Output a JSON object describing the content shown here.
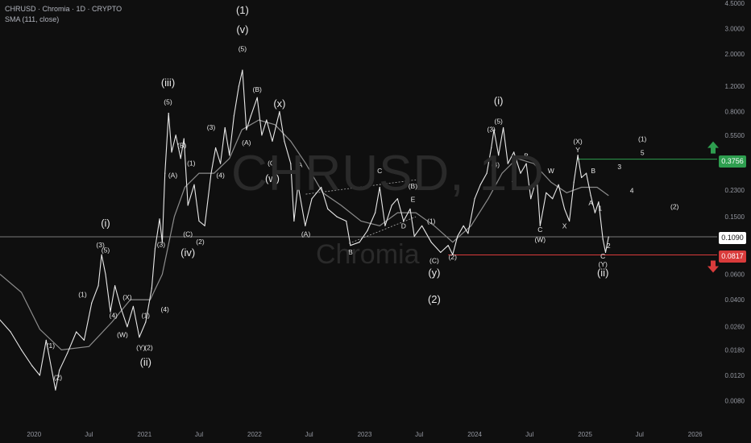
{
  "header": {
    "title": "CHRUSD · Chromia · 1D · CRYPTO",
    "indicator": "SMA (111, close)"
  },
  "watermark": {
    "symbol": "CHRUSD, 1D",
    "name": "Chromia"
  },
  "price_tags": {
    "target": "0.3756",
    "current": "0.1090",
    "stop": "0.0817"
  },
  "colors": {
    "background": "#0f0f0f",
    "price": "#e8e8e8",
    "sma": "#8c8c8c",
    "target": "#2e9e4f",
    "stop": "#d93b3b",
    "current_tag_bg": "#ffffff",
    "label": "#e6e6e6"
  },
  "chart_data": {
    "type": "line",
    "title": "CHRUSD · Chromia · 1D · CRYPTO",
    "scale": "log",
    "ylim": [
      0.007,
      4.5
    ],
    "xlim": [
      "2019-09-10",
      "2026-03-15"
    ],
    "grid": false,
    "y_ticks": [
      "4.5000",
      "3.0000",
      "2.0000",
      "1.2000",
      "0.8000",
      "0.5500",
      "0.3756",
      "0.2300",
      "0.1500",
      "0.1090",
      "0.0817",
      "0.0600",
      "0.0400",
      "0.0260",
      "0.0180",
      "0.0120",
      "0.0080"
    ],
    "x_ticks": [
      {
        "date": "2020-01-01",
        "label": "2020"
      },
      {
        "date": "2020-07-01",
        "label": "Jul"
      },
      {
        "date": "2021-01-01",
        "label": "2021"
      },
      {
        "date": "2021-07-01",
        "label": "Jul"
      },
      {
        "date": "2022-01-01",
        "label": "2022"
      },
      {
        "date": "2022-07-01",
        "label": "Jul"
      },
      {
        "date": "2023-01-01",
        "label": "2023"
      },
      {
        "date": "2023-07-01",
        "label": "Jul"
      },
      {
        "date": "2024-01-01",
        "label": "2024"
      },
      {
        "date": "2024-07-01",
        "label": "Jul"
      },
      {
        "date": "2025-01-01",
        "label": "2025"
      },
      {
        "date": "2025-07-01",
        "label": "Jul"
      },
      {
        "date": "2026-01-01",
        "label": "2026"
      }
    ],
    "series": [
      {
        "name": "CHRUSD",
        "kind": "price",
        "points": [
          [
            "2019-09-10",
            0.029
          ],
          [
            "2019-10-15",
            0.024
          ],
          [
            "2019-11-20",
            0.018
          ],
          [
            "2019-12-25",
            0.014
          ],
          [
            "2020-01-20",
            0.012
          ],
          [
            "2020-02-10",
            0.021
          ],
          [
            "2020-03-12",
            0.0095
          ],
          [
            "2020-03-25",
            0.013
          ],
          [
            "2020-04-20",
            0.017
          ],
          [
            "2020-05-20",
            0.024
          ],
          [
            "2020-06-15",
            0.021
          ],
          [
            "2020-07-10",
            0.038
          ],
          [
            "2020-08-01",
            0.05
          ],
          [
            "2020-08-12",
            0.082
          ],
          [
            "2020-08-25",
            0.06
          ],
          [
            "2020-09-10",
            0.033
          ],
          [
            "2020-09-25",
            0.05
          ],
          [
            "2020-10-15",
            0.035
          ],
          [
            "2020-11-05",
            0.026
          ],
          [
            "2020-11-25",
            0.036
          ],
          [
            "2020-12-15",
            0.022
          ],
          [
            "2021-01-05",
            0.028
          ],
          [
            "2021-01-25",
            0.048
          ],
          [
            "2021-02-05",
            0.09
          ],
          [
            "2021-02-20",
            0.145
          ],
          [
            "2021-03-01",
            0.1
          ],
          [
            "2021-03-10",
            0.3
          ],
          [
            "2021-03-22",
            0.78
          ],
          [
            "2021-04-01",
            0.42
          ],
          [
            "2021-04-15",
            0.55
          ],
          [
            "2021-05-01",
            0.38
          ],
          [
            "2021-05-12",
            0.52
          ],
          [
            "2021-05-25",
            0.18
          ],
          [
            "2021-06-15",
            0.25
          ],
          [
            "2021-07-01",
            0.14
          ],
          [
            "2021-07-20",
            0.13
          ],
          [
            "2021-08-10",
            0.3
          ],
          [
            "2021-08-25",
            0.45
          ],
          [
            "2021-09-10",
            0.35
          ],
          [
            "2021-09-25",
            0.62
          ],
          [
            "2021-10-10",
            0.4
          ],
          [
            "2021-10-25",
            0.75
          ],
          [
            "2021-11-10",
            1.2
          ],
          [
            "2021-11-22",
            1.55
          ],
          [
            "2021-12-05",
            0.6
          ],
          [
            "2021-12-20",
            0.75
          ],
          [
            "2022-01-10",
            1.0
          ],
          [
            "2022-01-25",
            0.55
          ],
          [
            "2022-02-10",
            0.7
          ],
          [
            "2022-03-01",
            0.5
          ],
          [
            "2022-03-25",
            0.8
          ],
          [
            "2022-04-10",
            0.5
          ],
          [
            "2022-05-01",
            0.35
          ],
          [
            "2022-05-12",
            0.14
          ],
          [
            "2022-05-25",
            0.25
          ],
          [
            "2022-06-18",
            0.13
          ],
          [
            "2022-07-10",
            0.2
          ],
          [
            "2022-08-10",
            0.24
          ],
          [
            "2022-09-01",
            0.17
          ],
          [
            "2022-10-01",
            0.15
          ],
          [
            "2022-11-01",
            0.14
          ],
          [
            "2022-11-15",
            0.095
          ],
          [
            "2022-12-15",
            0.1
          ],
          [
            "2023-01-10",
            0.12
          ],
          [
            "2023-02-05",
            0.16
          ],
          [
            "2023-02-20",
            0.24
          ],
          [
            "2023-03-10",
            0.13
          ],
          [
            "2023-04-01",
            0.18
          ],
          [
            "2023-04-20",
            0.2
          ],
          [
            "2023-05-10",
            0.14
          ],
          [
            "2023-06-01",
            0.17
          ],
          [
            "2023-06-15",
            0.11
          ],
          [
            "2023-07-10",
            0.13
          ],
          [
            "2023-08-10",
            0.1
          ],
          [
            "2023-09-10",
            0.085
          ],
          [
            "2023-10-05",
            0.095
          ],
          [
            "2023-10-20",
            0.082
          ],
          [
            "2023-11-05",
            0.11
          ],
          [
            "2023-11-25",
            0.13
          ],
          [
            "2023-12-10",
            0.115
          ],
          [
            "2024-01-01",
            0.2
          ],
          [
            "2024-01-20",
            0.25
          ],
          [
            "2024-02-10",
            0.3
          ],
          [
            "2024-02-25",
            0.45
          ],
          [
            "2024-03-05",
            0.6
          ],
          [
            "2024-03-20",
            0.4
          ],
          [
            "2024-04-05",
            0.62
          ],
          [
            "2024-04-20",
            0.35
          ],
          [
            "2024-05-10",
            0.42
          ],
          [
            "2024-06-01",
            0.3
          ],
          [
            "2024-06-20",
            0.35
          ],
          [
            "2024-07-05",
            0.2
          ],
          [
            "2024-07-25",
            0.28
          ],
          [
            "2024-08-05",
            0.13
          ],
          [
            "2024-08-25",
            0.22
          ],
          [
            "2024-09-15",
            0.2
          ],
          [
            "2024-10-05",
            0.25
          ],
          [
            "2024-10-25",
            0.17
          ],
          [
            "2024-11-10",
            0.14
          ],
          [
            "2024-11-25",
            0.26
          ],
          [
            "2024-12-08",
            0.4
          ],
          [
            "2024-12-20",
            0.28
          ],
          [
            "2025-01-05",
            0.3
          ],
          [
            "2025-01-20",
            0.21
          ],
          [
            "2025-02-03",
            0.16
          ],
          [
            "2025-02-15",
            0.19
          ],
          [
            "2025-03-01",
            0.105
          ],
          [
            "2025-03-10",
            0.085
          ],
          [
            "2025-03-20",
            0.109
          ]
        ]
      },
      {
        "name": "SMA (111, close)",
        "kind": "sma",
        "points": [
          [
            "2019-09-10",
            0.06
          ],
          [
            "2019-11-20",
            0.045
          ],
          [
            "2020-01-20",
            0.025
          ],
          [
            "2020-04-01",
            0.018
          ],
          [
            "2020-07-01",
            0.019
          ],
          [
            "2020-09-15",
            0.028
          ],
          [
            "2020-11-15",
            0.04
          ],
          [
            "2021-01-20",
            0.04
          ],
          [
            "2021-03-01",
            0.06
          ],
          [
            "2021-04-10",
            0.15
          ],
          [
            "2021-05-15",
            0.24
          ],
          [
            "2021-07-01",
            0.3
          ],
          [
            "2021-08-20",
            0.3
          ],
          [
            "2021-10-10",
            0.38
          ],
          [
            "2021-11-20",
            0.6
          ],
          [
            "2022-01-15",
            0.7
          ],
          [
            "2022-03-10",
            0.65
          ],
          [
            "2022-05-01",
            0.5
          ],
          [
            "2022-06-20",
            0.35
          ],
          [
            "2022-08-15",
            0.22
          ],
          [
            "2022-10-15",
            0.18
          ],
          [
            "2022-12-20",
            0.14
          ],
          [
            "2023-02-20",
            0.13
          ],
          [
            "2023-04-20",
            0.16
          ],
          [
            "2023-06-20",
            0.16
          ],
          [
            "2023-08-20",
            0.13
          ],
          [
            "2023-10-20",
            0.1
          ],
          [
            "2023-12-20",
            0.13
          ],
          [
            "2024-02-15",
            0.2
          ],
          [
            "2024-04-01",
            0.3
          ],
          [
            "2024-05-20",
            0.38
          ],
          [
            "2024-07-15",
            0.35
          ],
          [
            "2024-09-10",
            0.26
          ],
          [
            "2024-11-01",
            0.22
          ],
          [
            "2024-12-20",
            0.24
          ],
          [
            "2025-02-10",
            0.24
          ],
          [
            "2025-03-20",
            0.21
          ]
        ]
      }
    ],
    "levels": [
      {
        "value": 0.109,
        "label": "0.1090",
        "from": "2019-09-10"
      },
      {
        "value": 0.3756,
        "label": "0.3756",
        "from": "2024-12-05"
      },
      {
        "value": 0.0817,
        "label": "0.0817",
        "from": "2023-10-05"
      }
    ],
    "trendlines": [
      {
        "from": [
          "2022-06-20",
          0.215
        ],
        "to": [
          "2023-06-20",
          0.27
        ]
      },
      {
        "from": [
          "2022-11-10",
          0.098
        ],
        "to": [
          "2023-06-20",
          0.15
        ]
      }
    ],
    "annotations": [
      {
        "text": "(1)",
        "date": "2020-02-25",
        "price": 0.0185
      },
      {
        "text": "(2)",
        "date": "2020-03-20",
        "price": 0.0112
      },
      {
        "text": "(1)",
        "date": "2020-06-10",
        "price": 0.042
      },
      {
        "text": "(3)",
        "date": "2020-08-08",
        "price": 0.092
      },
      {
        "text": "(5)",
        "date": "2020-08-25",
        "price": 0.085
      },
      {
        "text": "(i)",
        "date": "2020-08-25",
        "price": 0.128,
        "big": true
      },
      {
        "text": "(4)",
        "date": "2020-09-20",
        "price": 0.03
      },
      {
        "text": "(X)",
        "date": "2020-11-05",
        "price": 0.04
      },
      {
        "text": "(W)",
        "date": "2020-10-20",
        "price": 0.022
      },
      {
        "text": "(Y)",
        "date": "2020-12-20",
        "price": 0.018
      },
      {
        "text": "(1)",
        "date": "2021-01-05",
        "price": 0.03
      },
      {
        "text": "(2)",
        "date": "2021-01-15",
        "price": 0.018
      },
      {
        "text": "(ii)",
        "date": "2021-01-05",
        "price": 0.014,
        "big": true
      },
      {
        "text": "(3)",
        "date": "2021-02-25",
        "price": 0.093
      },
      {
        "text": "(4)",
        "date": "2021-03-10",
        "price": 0.033
      },
      {
        "text": "(5)",
        "date": "2021-03-20",
        "price": 0.9
      },
      {
        "text": "(iii)",
        "date": "2021-03-20",
        "price": 1.2,
        "big": true
      },
      {
        "text": "(A)",
        "date": "2021-04-05",
        "price": 0.28
      },
      {
        "text": "(B)",
        "date": "2021-05-05",
        "price": 0.45
      },
      {
        "text": "(C)",
        "date": "2021-05-25",
        "price": 0.11
      },
      {
        "text": "(iv)",
        "date": "2021-05-25",
        "price": 0.08,
        "big": true
      },
      {
        "text": "(1)",
        "date": "2021-06-05",
        "price": 0.34
      },
      {
        "text": "(2)",
        "date": "2021-07-05",
        "price": 0.097
      },
      {
        "text": "(3)",
        "date": "2021-08-10",
        "price": 0.6
      },
      {
        "text": "(4)",
        "date": "2021-09-10",
        "price": 0.28
      },
      {
        "text": "(5)",
        "date": "2021-11-22",
        "price": 2.1
      },
      {
        "text": "(v)",
        "date": "2021-11-22",
        "price": 2.8,
        "big": true
      },
      {
        "text": "(1)",
        "date": "2021-11-22",
        "price": 3.8,
        "big": true
      },
      {
        "text": "(A)",
        "date": "2021-12-05",
        "price": 0.47
      },
      {
        "text": "(B)",
        "date": "2022-01-10",
        "price": 1.1
      },
      {
        "text": "(C)",
        "date": "2022-03-01",
        "price": 0.34
      },
      {
        "text": "(w)",
        "date": "2022-03-01",
        "price": 0.26,
        "big": true
      },
      {
        "text": "(x)",
        "date": "2022-03-25",
        "price": 0.86,
        "big": true
      },
      {
        "text": "A",
        "date": "2022-06-01",
        "price": 0.33
      },
      {
        "text": "(A)",
        "date": "2022-06-20",
        "price": 0.11
      },
      {
        "text": "B",
        "date": "2022-11-15",
        "price": 0.082
      },
      {
        "text": "C",
        "date": "2023-02-20",
        "price": 0.3
      },
      {
        "text": "D",
        "date": "2023-05-10",
        "price": 0.125
      },
      {
        "text": "(B)",
        "date": "2023-06-10",
        "price": 0.235
      },
      {
        "text": "E",
        "date": "2023-06-10",
        "price": 0.19
      },
      {
        "text": "(1)",
        "date": "2023-08-10",
        "price": 0.135
      },
      {
        "text": "(C)",
        "date": "2023-08-20",
        "price": 0.072
      },
      {
        "text": "(2)",
        "date": "2023-10-20",
        "price": 0.076
      },
      {
        "text": "(y)",
        "date": "2023-08-20",
        "price": 0.058,
        "big": true
      },
      {
        "text": "(2)",
        "date": "2023-08-20",
        "price": 0.038,
        "big": true
      },
      {
        "text": "(3)",
        "date": "2024-02-25",
        "price": 0.58
      },
      {
        "text": "(5)",
        "date": "2024-03-20",
        "price": 0.66
      },
      {
        "text": "(i)",
        "date": "2024-03-20",
        "price": 0.9,
        "big": true
      },
      {
        "text": "(4)",
        "date": "2024-03-10",
        "price": 0.33
      },
      {
        "text": "A",
        "date": "2024-05-10",
        "price": 0.26
      },
      {
        "text": "B",
        "date": "2024-06-20",
        "price": 0.38
      },
      {
        "text": "C",
        "date": "2024-08-05",
        "price": 0.118
      },
      {
        "text": "(W)",
        "date": "2024-08-05",
        "price": 0.1
      },
      {
        "text": "W",
        "date": "2024-09-10",
        "price": 0.3
      },
      {
        "text": "X",
        "date": "2024-10-25",
        "price": 0.125
      },
      {
        "text": "(X)",
        "date": "2024-12-08",
        "price": 0.48
      },
      {
        "text": "Y",
        "date": "2024-12-08",
        "price": 0.42
      },
      {
        "text": "A",
        "date": "2025-01-20",
        "price": 0.18
      },
      {
        "text": "B",
        "date": "2025-01-28",
        "price": 0.3
      },
      {
        "text": "1",
        "date": "2025-02-20",
        "price": 0.165
      },
      {
        "text": "C",
        "date": "2025-03-01",
        "price": 0.077
      },
      {
        "text": "(Y)",
        "date": "2025-03-01",
        "price": 0.068
      },
      {
        "text": "(ii)",
        "date": "2025-03-01",
        "price": 0.058,
        "big": true
      },
      {
        "text": "2",
        "date": "2025-03-20",
        "price": 0.091
      },
      {
        "text": "3",
        "date": "2025-04-25",
        "price": 0.32
      },
      {
        "text": "4",
        "date": "2025-06-05",
        "price": 0.22
      },
      {
        "text": "5",
        "date": "2025-07-10",
        "price": 0.4
      },
      {
        "text": "(1)",
        "date": "2025-07-10",
        "price": 0.5
      },
      {
        "text": "(2)",
        "date": "2025-10-25",
        "price": 0.17
      }
    ]
  }
}
